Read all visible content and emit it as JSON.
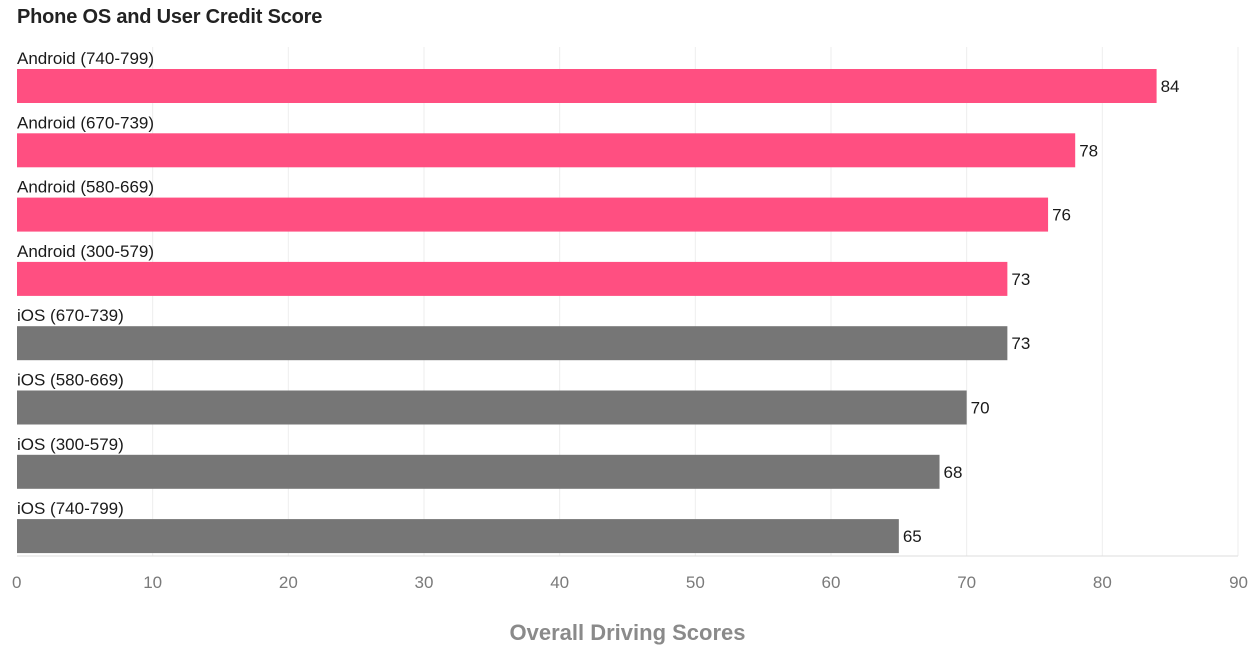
{
  "chart_data": {
    "type": "bar",
    "orientation": "horizontal",
    "title": "Phone OS and User Credit Score",
    "xlabel": "Overall Driving Scores",
    "ylabel": "",
    "xlim": [
      0,
      90
    ],
    "x_ticks": [
      0,
      10,
      20,
      30,
      40,
      50,
      60,
      70,
      80,
      90
    ],
    "grid": "vertical",
    "legend": "none",
    "categories": [
      "Android (740-799)",
      "Android (670-739)",
      "Android (580-669)",
      "Android (300-579)",
      "iOS (670-739)",
      "iOS (580-669)",
      "iOS (300-579)",
      "iOS (740-799)"
    ],
    "values": [
      84,
      78,
      76,
      73,
      73,
      70,
      68,
      65
    ],
    "bar_colors": [
      "#ff4f81",
      "#ff4f81",
      "#ff4f81",
      "#ff4f81",
      "#767676",
      "#767676",
      "#767676",
      "#767676"
    ],
    "colors": {
      "android": "#ff4f81",
      "ios": "#767676",
      "grid": "#eeeeee",
      "axis_title": "#8a8a8a",
      "tick": "#7a7a7a"
    }
  }
}
